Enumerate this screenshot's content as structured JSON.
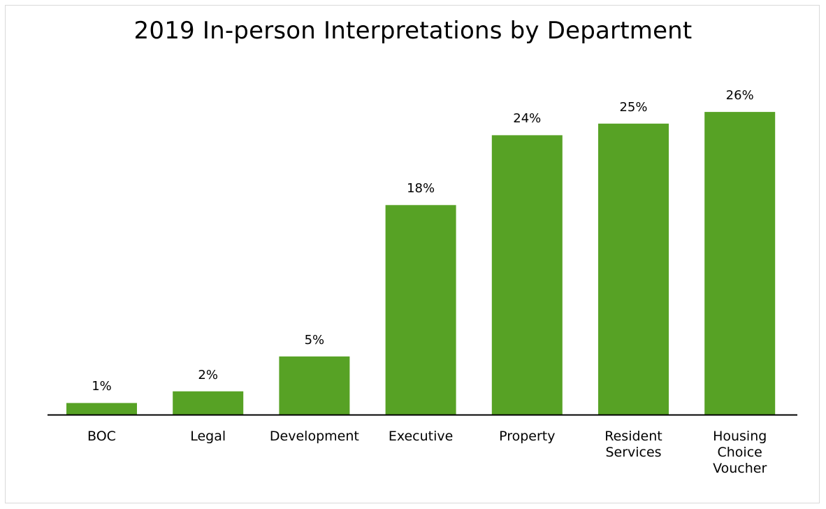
{
  "chart_data": {
    "type": "bar",
    "title": "2019 In-person Interpretations by Department",
    "categories": [
      [
        "BOC"
      ],
      [
        "Legal"
      ],
      [
        "Development"
      ],
      [
        "Executive"
      ],
      [
        "Property"
      ],
      [
        "Resident",
        "Services"
      ],
      [
        "Housing",
        "Choice",
        "Voucher"
      ]
    ],
    "values": [
      1,
      2,
      5,
      18,
      24,
      25,
      26
    ],
    "value_labels": [
      "1%",
      "2%",
      "5%",
      "18%",
      "24%",
      "25%",
      "26%"
    ],
    "unit": "%",
    "xlabel": "",
    "ylabel": "",
    "ylim": [
      0,
      26
    ],
    "grid": false,
    "legend": "none",
    "colors": {
      "bar": "#57A225",
      "axis": "#000000",
      "border": "#d9d9d9"
    }
  }
}
